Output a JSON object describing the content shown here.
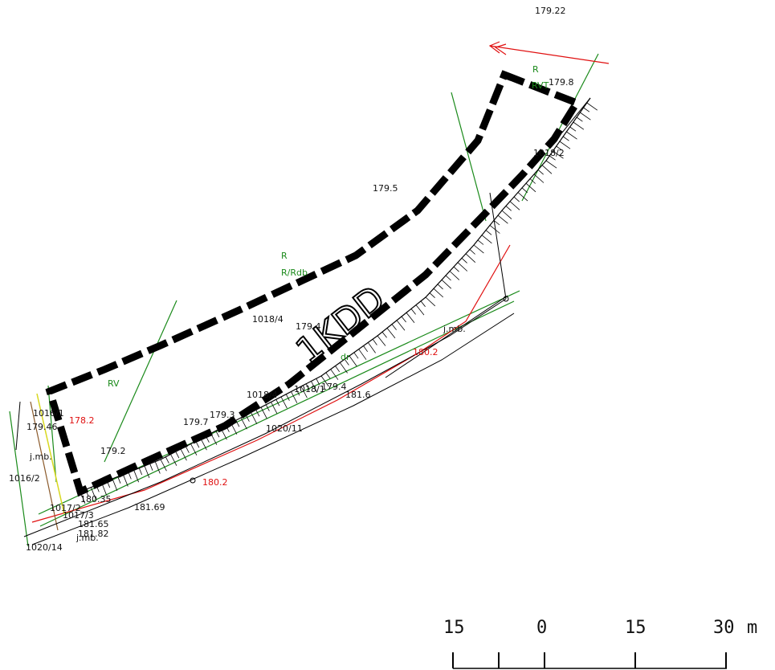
{
  "map": {
    "plot_label": "1KDD",
    "elevations": {
      "e1": "179.22",
      "e2": "179.8",
      "e3": "179.5",
      "e4": "179.2",
      "e5": "179.7",
      "e6": "179.3",
      "e7": "179.4",
      "e8": "181.6",
      "e9": "181.69",
      "e10": "180.35",
      "e11": "181.65",
      "e12": "181.82",
      "e13": "179.46",
      "e14": "179.4"
    },
    "red_elevations": {
      "r1": "178.2",
      "r2": "180.2",
      "r3": "180.2"
    },
    "parcels": {
      "p1": "1018/4",
      "p2": "1018/2",
      "p3": "1018/4",
      "p4": "1020/11",
      "p5": "1018/1",
      "p6": "1016/2",
      "p7": "1020/14",
      "p8": "1017/3",
      "p9": "1017/2",
      "p10": "1016/1"
    },
    "notes": {
      "jmb1": "j.mb.",
      "jmb2": "j.mb.",
      "jmb3": "j.mb.",
      "r_top": "R",
      "r_mid": "R",
      "rv": "RV",
      "rrdb": "R/Rdb",
      "rvt": "RVT",
      "dr": "dr"
    }
  },
  "scale_bar": {
    "ticks": [
      "15",
      "0",
      "15",
      "30"
    ],
    "unit": "m"
  },
  "colors": {
    "red": "#e01010",
    "green": "#1a8a1a",
    "brown": "#8b5a2b",
    "yellow": "#d8d820",
    "black": "#000000"
  }
}
